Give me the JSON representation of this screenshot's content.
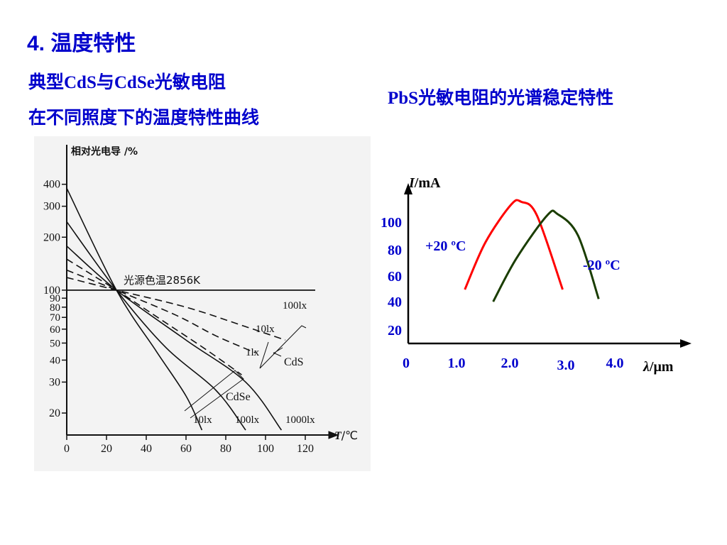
{
  "heading": "4. 温度特性",
  "left_caption": {
    "line1": "典型CdS与CdSe光敏电阻",
    "line2": "在不同照度下的温度特性曲线"
  },
  "right_caption": "PbS光敏电阻的光谱稳定特性",
  "chart_data": [
    {
      "type": "line",
      "ylabel": "相对光电导 /%",
      "xlabel_italic": "T",
      "xlabel_unit": "/℃",
      "x_ticks": [
        0,
        20,
        40,
        60,
        80,
        100,
        120
      ],
      "xlim": [
        0,
        130
      ],
      "y_scale": "log",
      "y_ticks": [
        20,
        30,
        40,
        50,
        60,
        70,
        80,
        90,
        100,
        200,
        300,
        400
      ],
      "ylim": [
        15,
        450
      ],
      "reference_label": "光源色温2856K",
      "group_labels": {
        "cds": "CdS",
        "cdse": "CdSe"
      },
      "series": [
        {
          "name": "光源色温2856K",
          "group": "ref",
          "x": [
            0,
            125
          ],
          "y": [
            100,
            100
          ]
        },
        {
          "name": "100lx",
          "group": "cds",
          "x": [
            0,
            25,
            60,
            90,
            110
          ],
          "y": [
            118,
            100,
            80,
            62,
            52
          ]
        },
        {
          "name": "10lx",
          "group": "cds",
          "x": [
            0,
            25,
            55,
            75,
            95
          ],
          "y": [
            130,
            100,
            72,
            55,
            44
          ]
        },
        {
          "name": "1lx",
          "group": "cds",
          "x": [
            0,
            25,
            50,
            70,
            88
          ],
          "y": [
            150,
            100,
            65,
            46,
            33
          ]
        },
        {
          "name": "10lx",
          "group": "cdse",
          "x": [
            0,
            25,
            45,
            60,
            68
          ],
          "y": [
            380,
            100,
            45,
            25,
            16
          ]
        },
        {
          "name": "100lx",
          "group": "cdse",
          "x": [
            0,
            25,
            50,
            75,
            90
          ],
          "y": [
            245,
            100,
            47,
            27,
            16
          ]
        },
        {
          "name": "1000lx",
          "group": "cdse",
          "x": [
            0,
            25,
            60,
            90,
            108
          ],
          "y": [
            178,
            100,
            52,
            30,
            16
          ]
        }
      ]
    },
    {
      "type": "line",
      "ylabel_italic": "I",
      "ylabel_unit": "/mA",
      "xlabel_italic": "λ",
      "xlabel_unit": "/μm",
      "x_ticks": [
        "0",
        "1.0",
        "2.0",
        "3.0",
        "4.0"
      ],
      "y_ticks": [
        "100",
        "80",
        "60",
        "40",
        "20"
      ],
      "xlim": [
        0,
        5.6
      ],
      "ylim": [
        0,
        125
      ],
      "series": [
        {
          "name": "+20 ºC",
          "color": "#ff0000",
          "x": [
            1.1,
            1.5,
            2.0,
            2.2,
            2.5,
            3.0
          ],
          "y": [
            40,
            75,
            103,
            105,
            95,
            40
          ]
        },
        {
          "name": "-20 ºC",
          "color": "#1a3d00",
          "x": [
            1.65,
            2.1,
            2.7,
            2.9,
            3.3,
            3.7
          ],
          "y": [
            31,
            63,
            95,
            96,
            80,
            33
          ]
        }
      ]
    }
  ]
}
